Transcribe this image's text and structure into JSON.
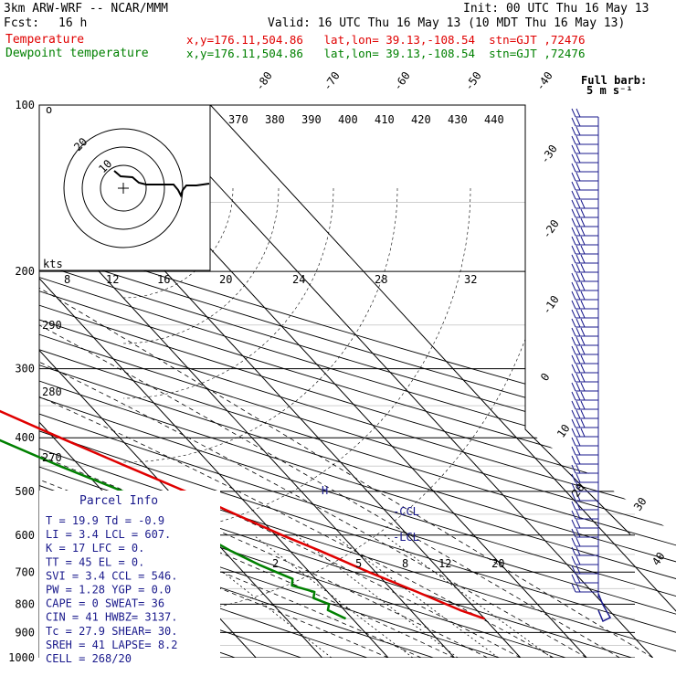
{
  "header": {
    "model": "3km ARW-WRF -- NCAR/MMM",
    "init": "Init: 00 UTC Thu 16 May 13",
    "fcst_label": "Fcst:",
    "fcst_value": "16 h",
    "valid": "Valid: 16 UTC Thu 16 May 13 (10 MDT Thu 16 May 13)",
    "temp_label": "Temperature",
    "temp_info": "x,y=176.11,504.86   lat,lon= 39.13,-108.54  stn=GJT ,72476",
    "dew_label": "Dewpoint temperature",
    "dew_info": "x,y=176.11,504.86   lat,lon= 39.13,-108.54  stn=GJT ,72476"
  },
  "barb_legend": {
    "line1": "Full barb:",
    "line2": "5 m s⁻¹"
  },
  "pressure_labels": [
    "100",
    "200",
    "300",
    "400",
    "500",
    "600",
    "700",
    "800",
    "900",
    "1000"
  ],
  "top_temp_labels": [
    "-80",
    "-70",
    "-60",
    "-50",
    "-40"
  ],
  "right_temp_labels": [
    "-30",
    "-20",
    "-10",
    "0",
    "10",
    "20",
    "30",
    "40"
  ],
  "theta_labels": [
    "370",
    "380",
    "390",
    "400",
    "410",
    "420",
    "430",
    "440"
  ],
  "theta_lower_labels": [
    "290",
    "280",
    "270"
  ],
  "mixing_labels": [
    "2",
    "5",
    "8",
    "12",
    "20"
  ],
  "hodo_labels": [
    "kts",
    "8",
    "12",
    "16",
    "20",
    "24",
    "28",
    "32"
  ],
  "hodo_ring_labels": [
    "10",
    "20"
  ],
  "markers": {
    "ccl": "-CCL",
    "lcl": "-LCL",
    "h": "H"
  },
  "parcel": {
    "title": "Parcel Info",
    "rows": [
      "T  =   19.9 Td =  -0.9",
      "LI =    3.4 LCL =  607.",
      "K  =     17 LFC =    0.",
      "TT =     45 EL  =    0.",
      "SVI =   3.4 CCL =  546.",
      "PW =   1.28 YGP =   0.0",
      "CAPE =    0 SWEAT=   36",
      "CIN =    41 HWBZ= 3137.",
      "Tc =   27.9 SHEAR=  30.",
      "SREH =   41 LAPSE=  8.2",
      "CELL = 268/20"
    ]
  },
  "chart_data": {
    "type": "line",
    "series": [
      {
        "name": "Temperature",
        "color": "#e00000",
        "pressure_hPa": [
          850,
          820,
          760,
          700,
          640,
          600,
          540,
          500,
          450,
          400,
          350,
          300,
          260,
          240,
          220,
          200,
          180,
          160,
          145,
          135,
          125,
          115,
          105,
          100
        ],
        "temperature_C": [
          20.0,
          17.5,
          13.5,
          9.0,
          4.5,
          1.0,
          -4.0,
          -7.5,
          -13.0,
          -19.0,
          -25.5,
          -33.0,
          -39.5,
          -43.5,
          -47.5,
          -51.5,
          -55.0,
          -58.5,
          -59.5,
          -58.5,
          -57.5,
          -56.5,
          -55.5,
          -55.0
        ]
      },
      {
        "name": "Dewpoint temperature",
        "color": "#008000",
        "pressure_hPa": [
          850,
          820,
          800,
          780,
          760,
          740,
          720,
          700,
          680,
          640,
          600,
          540,
          500,
          450,
          400,
          350,
          300,
          260,
          230,
          210,
          200,
          190,
          170,
          150,
          130,
          110,
          100
        ],
        "temperature_C": [
          -1.0,
          -2.5,
          -1.5,
          -3.0,
          -2.0,
          -4.5,
          -3.5,
          -5.0,
          -6.5,
          -9.0,
          -11.0,
          -14.0,
          -17.0,
          -23.0,
          -29.0,
          -36.0,
          -43.0,
          -51.0,
          -57.0,
          -62.0,
          -66.0,
          -68.0,
          -68.0,
          -67.0,
          -67.0,
          -67.0,
          -67.0
        ]
      }
    ],
    "pressure_axis_hPa": [
      100,
      1000
    ],
    "y_scale": "log"
  },
  "colors": {
    "temperature": "#e00000",
    "dewpoint": "#008000",
    "labels_blue": "#1a1a8c",
    "barbs": "#1a1a8c"
  }
}
